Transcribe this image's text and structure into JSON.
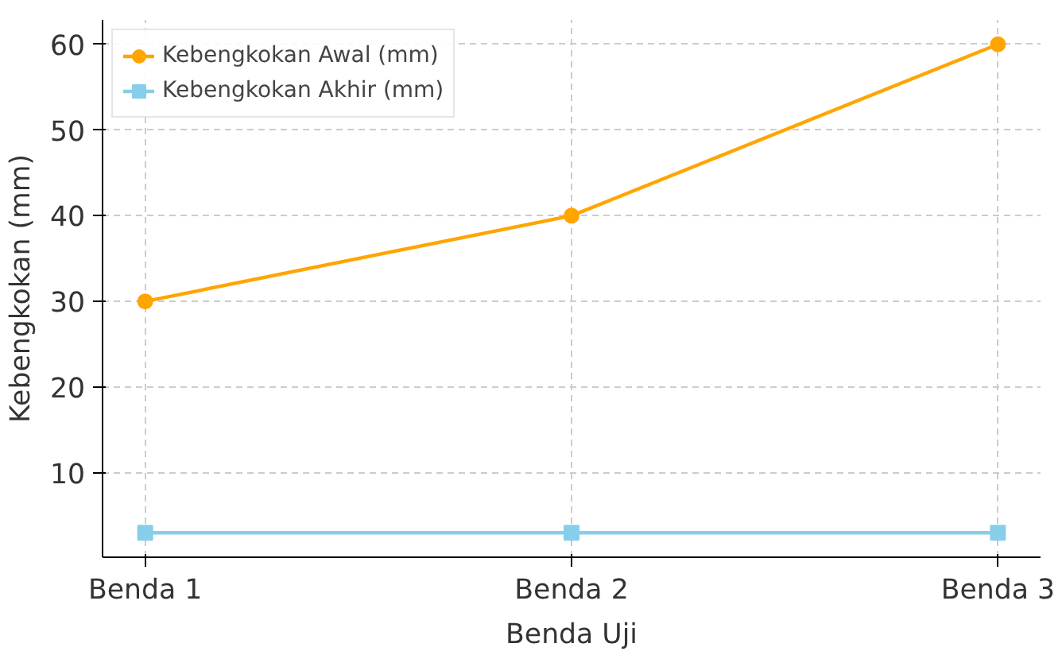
{
  "chart_data": {
    "type": "line",
    "xlabel": "Benda Uji",
    "ylabel": "Kebengkokan (mm)",
    "categories": [
      "Benda 1",
      "Benda 2",
      "Benda 3"
    ],
    "series": [
      {
        "name": "Kebengkokan Awal (mm)",
        "color": "#ffa500",
        "marker": "circle",
        "values": [
          30,
          40,
          60
        ]
      },
      {
        "name": "Kebengkokan Akhir (mm)",
        "color": "#87ceeb",
        "marker": "square",
        "values": [
          3,
          3,
          3
        ]
      }
    ],
    "ylim": [
      0.15,
      62.85
    ],
    "yticks": [
      10,
      20,
      30,
      40,
      50,
      60
    ],
    "grid": true,
    "legend": "top left",
    "line_style": "solid"
  }
}
